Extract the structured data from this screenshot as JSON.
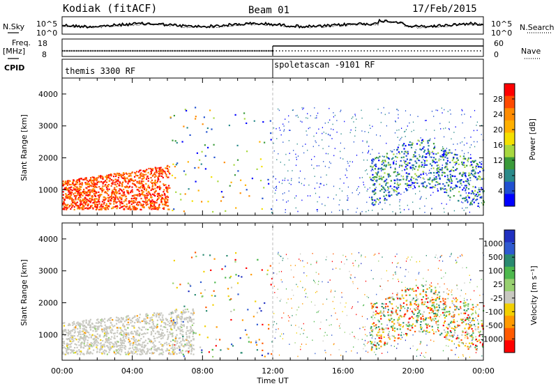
{
  "header": {
    "station": "Kodiak (fitACF)",
    "beam": "Beam 01",
    "date": "17/Feb/2015"
  },
  "side_labels": {
    "nsky": "N.Sky",
    "nsearch": "N.Search",
    "freq": "Freq.",
    "freq_unit": "[MHz]",
    "cpid": "CPID",
    "nave": "Nave"
  },
  "noise_panel": {
    "left_ticks": [
      "10^5",
      "10^0"
    ],
    "right_ticks": [
      "10^5",
      "10^0"
    ]
  },
  "freq_panel": {
    "left_ticks": [
      "18",
      "8"
    ],
    "right_ticks": [
      "60",
      "0"
    ]
  },
  "cpid_panel": {
    "segments": [
      {
        "label": "themis 3300 RF",
        "start": 0,
        "end": 12
      },
      {
        "label": "spoletascan -9101 RF",
        "start": 12,
        "end": 24
      }
    ]
  },
  "chart_data": [
    {
      "type": "heatmap",
      "parameter": "Power",
      "ylabel": "Slant Range [km]",
      "xlabel": "Time UT",
      "xlim": [
        0,
        24
      ],
      "ylim": [
        200,
        4500
      ],
      "x_ticks": [
        "00:00",
        "04:00",
        "08:00",
        "12:00",
        "16:00",
        "20:00",
        "00:00"
      ],
      "y_ticks": [
        "1000",
        "2000",
        "3000",
        "4000"
      ],
      "colorbar": {
        "label": "Power [dB]",
        "ticks": [
          "28",
          "24",
          "20",
          "16",
          "12",
          "8",
          "4"
        ],
        "colors": [
          "#ff0000",
          "#ff4a00",
          "#ff8c00",
          "#ffb000",
          "#f4e000",
          "#a8d840",
          "#3a9a3a",
          "#2a8a8a",
          "#2050d0",
          "#0000ff"
        ]
      }
    },
    {
      "type": "heatmap",
      "parameter": "Velocity",
      "ylabel": "Slant Range [km]",
      "xlabel": "Time UT",
      "xlim": [
        0,
        24
      ],
      "ylim": [
        200,
        4500
      ],
      "x_ticks": [
        "00:00",
        "04:00",
        "08:00",
        "12:00",
        "16:00",
        "20:00",
        "00:00"
      ],
      "y_ticks": [
        "1000",
        "2000",
        "3000",
        "4000"
      ],
      "colorbar": {
        "label": "Velocity [m s⁻¹]",
        "ticks": [
          "1000",
          "500",
          "100",
          "25",
          "-25",
          "-100",
          "-500",
          "-1000"
        ],
        "colors": [
          "#2030c0",
          "#2e5ad0",
          "#2a8a70",
          "#4db84d",
          "#98d070",
          "#c8c8c0",
          "#f2d000",
          "#ff9a00",
          "#ff5a00",
          "#ff0000"
        ]
      }
    }
  ]
}
